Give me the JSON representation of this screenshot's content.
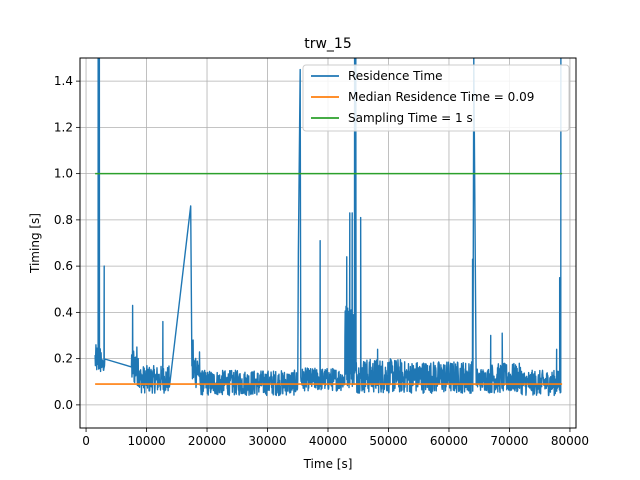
{
  "chart_data": {
    "type": "line",
    "title": "trw_15",
    "xlabel": "Time [s]",
    "ylabel": "Timing [s]",
    "xlim": [
      -1000,
      81000
    ],
    "ylim": [
      -0.1,
      1.5
    ],
    "xticks": [
      0,
      10000,
      20000,
      30000,
      40000,
      50000,
      60000,
      70000,
      80000
    ],
    "yticks": [
      0.0,
      0.2,
      0.4,
      0.6,
      0.8,
      1.0,
      1.2,
      1.4
    ],
    "grid": true,
    "legend_position": "top-right",
    "series": [
      {
        "name": "Residence Time",
        "color": "#1f77b4",
        "style": "noisy-line",
        "baseline_segments": [
          {
            "x": [
              1500,
              2600
            ],
            "low": 0.13,
            "high": 0.26
          },
          {
            "x": [
              2600,
              3100
            ],
            "low": 0.14,
            "high": 0.2
          },
          {
            "x": [
              7500,
              8800
            ],
            "low": 0.08,
            "high": 0.26
          },
          {
            "x": [
              8800,
              13800
            ],
            "low": 0.05,
            "high": 0.17
          },
          {
            "x": [
              17500,
              18800
            ],
            "low": 0.07,
            "high": 0.24
          },
          {
            "x": [
              18800,
              35000
            ],
            "low": 0.04,
            "high": 0.15
          },
          {
            "x": [
              35500,
              38000
            ],
            "low": 0.06,
            "high": 0.16
          },
          {
            "x": [
              38000,
              42800
            ],
            "low": 0.06,
            "high": 0.16
          },
          {
            "x": [
              42800,
              44500
            ],
            "low": 0.07,
            "high": 0.45
          },
          {
            "x": [
              44500,
              52000
            ],
            "low": 0.05,
            "high": 0.2
          },
          {
            "x": [
              52000,
              64000
            ],
            "low": 0.05,
            "high": 0.19
          },
          {
            "x": [
              64500,
              66500
            ],
            "low": 0.06,
            "high": 0.16
          },
          {
            "x": [
              66500,
              72000
            ],
            "low": 0.05,
            "high": 0.18
          },
          {
            "x": [
              72000,
              78500
            ],
            "low": 0.04,
            "high": 0.15
          }
        ],
        "spikes": [
          {
            "x": 2000,
            "y": 1.5
          },
          {
            "x": 2200,
            "y": 1.5
          },
          {
            "x": 3000,
            "y": 0.6
          },
          {
            "x": 7700,
            "y": 0.43
          },
          {
            "x": 12700,
            "y": 0.36
          },
          {
            "x": 17300,
            "y": 0.86
          },
          {
            "x": 17700,
            "y": 0.28
          },
          {
            "x": 35100,
            "y": 0.66
          },
          {
            "x": 35400,
            "y": 1.45
          },
          {
            "x": 38700,
            "y": 0.71
          },
          {
            "x": 43100,
            "y": 0.64
          },
          {
            "x": 43600,
            "y": 0.83
          },
          {
            "x": 44000,
            "y": 0.83
          },
          {
            "x": 44400,
            "y": 1.5
          },
          {
            "x": 44600,
            "y": 1.5
          },
          {
            "x": 45400,
            "y": 0.81
          },
          {
            "x": 48200,
            "y": 0.24
          },
          {
            "x": 63900,
            "y": 0.63
          },
          {
            "x": 64100,
            "y": 1.5
          },
          {
            "x": 66900,
            "y": 0.3
          },
          {
            "x": 68800,
            "y": 0.31
          },
          {
            "x": 77800,
            "y": 0.24
          },
          {
            "x": 78300,
            "y": 0.55
          },
          {
            "x": 78500,
            "y": 1.5
          }
        ]
      },
      {
        "name": "Median Residence Time = 0.09",
        "color": "#ff7f0e",
        "x": [
          1500,
          78700
        ],
        "y": [
          0.09,
          0.09
        ]
      },
      {
        "name": "Sampling Time = 1 s",
        "color": "#2ca02c",
        "x": [
          1500,
          78700
        ],
        "y": [
          1.0,
          1.0
        ]
      }
    ]
  }
}
